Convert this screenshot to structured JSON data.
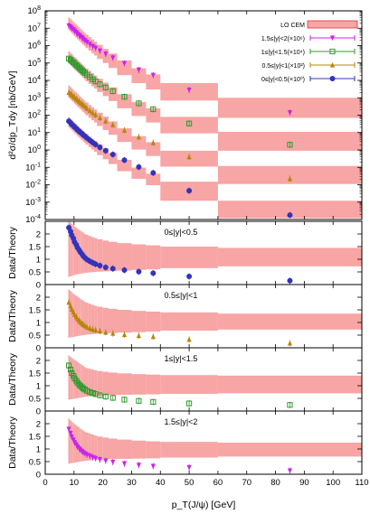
{
  "chart_data": {
    "type": "scatter",
    "xlabel": "p_T(J/ψ) [GeV]",
    "xlim": [
      0,
      110
    ],
    "x_ticks": [
      0,
      10,
      20,
      30,
      40,
      50,
      60,
      70,
      80,
      90,
      100,
      110
    ],
    "top_panel": {
      "ylabel": "d²σ/dp_Tdy [nb/GeV]",
      "yscale": "log",
      "ylim": [
        0.0001,
        100000000
      ],
      "y_ticks": [
        {
          "v": 0.0001,
          "exp": "-4"
        },
        {
          "v": 0.001,
          "exp": "-3"
        },
        {
          "v": 0.01,
          "exp": "-2"
        },
        {
          "v": 0.1,
          "exp": "-1"
        },
        {
          "v": 1,
          "exp": "0"
        },
        {
          "v": 10,
          "exp": "1"
        },
        {
          "v": 100,
          "exp": "2"
        },
        {
          "v": 1000,
          "exp": "3"
        },
        {
          "v": 10000,
          "exp": "4"
        },
        {
          "v": 100000,
          "exp": "5"
        },
        {
          "v": 1000000,
          "exp": "6"
        },
        {
          "v": 10000000,
          "exp": "7"
        },
        {
          "v": 100000000,
          "exp": "8"
        }
      ],
      "tick_base": "10",
      "legend_position": "top-right",
      "theory_label": "LO CEM",
      "theory_color": "#f7a5a5",
      "bin_edges": [
        8,
        8.5,
        9,
        9.5,
        10,
        10.5,
        11,
        11.5,
        12,
        12.5,
        13,
        13.5,
        14,
        15,
        16,
        17,
        18,
        20,
        22,
        25,
        30,
        35,
        40,
        60,
        110
      ],
      "series": [
        {
          "label": "1.5≤|y|<2(×10⁶)",
          "color": "#cc22ee",
          "marker": "triangle-down",
          "x": [
            8.2,
            8.8,
            9.2,
            9.8,
            10.2,
            10.8,
            11.2,
            11.8,
            12.2,
            12.8,
            13.2,
            13.8,
            14.5,
            15.5,
            16.5,
            17.5,
            19,
            21,
            23.5,
            27.5,
            32.5,
            37.5,
            50,
            85
          ],
          "y": [
            14000000,
            12000000,
            10000000,
            8500000,
            7000000,
            5800000,
            4800000,
            4000000,
            3400000,
            2900000,
            2400000,
            2000000,
            1600000,
            1200000,
            900000,
            720000,
            500000,
            330000,
            200000,
            95000,
            40000,
            20000,
            2800,
            140
          ],
          "theory_lo": [
            8000000,
            6500000,
            5300000,
            4300000,
            3500000,
            2850000,
            2350000,
            1950000,
            1620000,
            1350000,
            1120000,
            940000,
            720000,
            510000,
            370000,
            270000,
            170000,
            100000,
            52000,
            20000,
            7000,
            3000,
            700,
            70
          ],
          "theory_hi": [
            42000000,
            35000000,
            29000000,
            24000000,
            20000000,
            16500000,
            13700000,
            11400000,
            9500000,
            7900000,
            6600000,
            5500000,
            4300000,
            3100000,
            2300000,
            1700000,
            1100000,
            650000,
            350000,
            140000,
            50000,
            22000,
            7000,
            1000
          ]
        },
        {
          "label": "1≤|y|<1.5(×10⁴)",
          "color": "#2e9c2e",
          "marker": "square",
          "x": [
            8.2,
            8.8,
            9.2,
            9.8,
            10.2,
            10.8,
            11.2,
            11.8,
            12.2,
            12.8,
            13.2,
            13.8,
            14.5,
            15.5,
            16.5,
            17.5,
            19,
            21,
            23.5,
            27.5,
            32.5,
            37.5,
            50,
            85
          ],
          "y": [
            180000,
            155000,
            130000,
            110000,
            92000,
            77000,
            64000,
            54000,
            45000,
            38000,
            32000,
            27000,
            21000,
            15500,
            11500,
            8800,
            6000,
            3900,
            2400,
            1150,
            480,
            220,
            33,
            2
          ],
          "theory_lo": [
            95000,
            78000,
            64000,
            52000,
            43000,
            35000,
            29000,
            24000,
            20000,
            16600,
            13800,
            11500,
            8900,
            6300,
            4600,
            3400,
            2150,
            1250,
            650,
            250,
            90,
            38,
            9,
            0.9
          ],
          "theory_hi": [
            480000,
            400000,
            330000,
            270000,
            225000,
            186000,
            154000,
            128000,
            107000,
            89000,
            74000,
            62000,
            48000,
            35000,
            26000,
            19000,
            12500,
            7500,
            4000,
            1600,
            560,
            250,
            80,
            11
          ]
        },
        {
          "label": "0.5≤|y|<1(×10²)",
          "color": "#b8860b",
          "marker": "triangle-up",
          "x": [
            8.2,
            8.8,
            9.2,
            9.8,
            10.2,
            10.8,
            11.2,
            11.8,
            12.2,
            12.8,
            13.2,
            13.8,
            14.5,
            15.5,
            16.5,
            17.5,
            19,
            21,
            23.5,
            27.5,
            32.5,
            37.5,
            50,
            85
          ],
          "y": [
            2000,
            1720,
            1450,
            1230,
            1030,
            870,
            730,
            615,
            520,
            440,
            372,
            315,
            245,
            182,
            136,
            104,
            71,
            46,
            28,
            13.5,
            5.6,
            2.6,
            0.4,
            0.022
          ],
          "theory_lo": [
            1000,
            830,
            680,
            560,
            460,
            380,
            315,
            262,
            218,
            182,
            152,
            127,
            98,
            70,
            51,
            38,
            24,
            14,
            7.4,
            2.9,
            1.05,
            0.45,
            0.11,
            0.011
          ],
          "theory_hi": [
            5200,
            4300,
            3550,
            2950,
            2450,
            2030,
            1690,
            1400,
            1170,
            975,
            815,
            680,
            530,
            385,
            285,
            212,
            138,
            83,
            44,
            17.5,
            6.2,
            2.8,
            0.9,
            0.12
          ]
        },
        {
          "label": "0≤|y|<0.5(×10⁰)",
          "color": "#3333bb",
          "marker": "circle",
          "x": [
            8.2,
            8.8,
            9.2,
            9.8,
            10.2,
            10.8,
            11.2,
            11.8,
            12.2,
            12.8,
            13.2,
            13.8,
            14.5,
            15.5,
            16.5,
            17.5,
            19,
            21,
            23.5,
            27.5,
            32.5,
            37.5,
            50,
            85
          ],
          "y": [
            45,
            36,
            29.5,
            24.5,
            20.5,
            17,
            14.2,
            12,
            10.1,
            8.6,
            7.3,
            6.2,
            4.9,
            3.6,
            2.7,
            2.05,
            1.4,
            0.9,
            0.55,
            0.26,
            0.105,
            0.048,
            0.0045,
            0.00018
          ],
          "theory_lo": [
            20,
            16.5,
            13.6,
            11.2,
            9.3,
            7.7,
            6.4,
            5.3,
            4.45,
            3.72,
            3.11,
            2.61,
            2.02,
            1.45,
            1.06,
            0.79,
            0.5,
            0.29,
            0.155,
            0.06,
            0.022,
            0.0094,
            0.0012,
            0.00012
          ],
          "theory_hi": [
            80,
            66,
            54.5,
            45,
            37.3,
            31,
            25.8,
            21.5,
            17.9,
            15,
            12.5,
            10.5,
            8.15,
            5.9,
            4.35,
            3.25,
            2.1,
            1.27,
            0.68,
            0.27,
            0.096,
            0.043,
            0.015,
            0.0012
          ]
        }
      ]
    },
    "ratio_panels": [
      {
        "label": "0≤|y|<0.5",
        "ylabel": "Data/Theory",
        "color": "#3333bb",
        "marker": "circle",
        "ylim": [
          0,
          2.5
        ],
        "y_ticks": [
          0,
          0.5,
          1,
          1.5,
          2
        ],
        "x": [
          8.2,
          8.8,
          9.2,
          9.8,
          10.2,
          10.8,
          11.2,
          11.8,
          12.2,
          12.8,
          13.2,
          13.8,
          14.5,
          15.5,
          16.5,
          17.5,
          19,
          21,
          23.5,
          27.5,
          32.5,
          37.5,
          50,
          85
        ],
        "y": [
          2.25,
          2.1,
          1.95,
          1.82,
          1.68,
          1.57,
          1.46,
          1.36,
          1.28,
          1.2,
          1.13,
          1.06,
          0.99,
          0.92,
          0.86,
          0.81,
          0.75,
          0.68,
          0.63,
          0.57,
          0.51,
          0.45,
          0.32,
          0.15
        ],
        "band_lo": [
          0.3,
          0.32,
          0.34,
          0.36,
          0.38,
          0.4,
          0.41,
          0.42,
          0.43,
          0.44,
          0.45,
          0.46,
          0.47,
          0.48,
          0.49,
          0.5,
          0.51,
          0.52,
          0.53,
          0.55,
          0.58,
          0.6,
          0.65,
          0.72
        ],
        "band_hi": [
          2.5,
          2.45,
          2.4,
          2.35,
          2.3,
          2.25,
          2.21,
          2.17,
          2.13,
          2.09,
          2.05,
          2.01,
          1.97,
          1.92,
          1.88,
          1.84,
          1.79,
          1.74,
          1.69,
          1.64,
          1.59,
          1.55,
          1.5,
          1.45
        ]
      },
      {
        "label": "0.5≤|y|<1",
        "ylabel": "Data/Theory",
        "color": "#b8860b",
        "marker": "triangle-up",
        "ylim": [
          0,
          2.5
        ],
        "y_ticks": [
          0,
          0.5,
          1,
          1.5,
          2
        ],
        "x": [
          8.2,
          8.8,
          9.2,
          9.8,
          10.2,
          10.8,
          11.2,
          11.8,
          12.2,
          12.8,
          13.2,
          13.8,
          14.5,
          15.5,
          16.5,
          17.5,
          19,
          21,
          23.5,
          27.5,
          32.5,
          37.5,
          50,
          85
        ],
        "y": [
          1.8,
          1.65,
          1.52,
          1.41,
          1.31,
          1.22,
          1.14,
          1.07,
          1.01,
          0.96,
          0.91,
          0.87,
          0.82,
          0.77,
          0.73,
          0.7,
          0.66,
          0.61,
          0.57,
          0.52,
          0.48,
          0.44,
          0.33,
          0.18
        ],
        "band_lo": [
          0.4,
          0.41,
          0.42,
          0.43,
          0.44,
          0.45,
          0.46,
          0.47,
          0.48,
          0.49,
          0.5,
          0.51,
          0.52,
          0.53,
          0.54,
          0.55,
          0.56,
          0.57,
          0.58,
          0.6,
          0.62,
          0.64,
          0.68,
          0.72
        ],
        "band_hi": [
          2.3,
          2.25,
          2.2,
          2.15,
          2.1,
          2.06,
          2.02,
          1.98,
          1.94,
          1.9,
          1.86,
          1.82,
          1.78,
          1.74,
          1.7,
          1.66,
          1.62,
          1.58,
          1.54,
          1.5,
          1.46,
          1.43,
          1.4,
          1.35
        ]
      },
      {
        "label": "1≤|y|<1.5",
        "ylabel": "Data/Theory",
        "color": "#2e9c2e",
        "marker": "square",
        "ylim": [
          0,
          2.5
        ],
        "y_ticks": [
          0,
          0.5,
          1,
          1.5,
          2
        ],
        "x": [
          8.2,
          8.8,
          9.2,
          9.8,
          10.2,
          10.8,
          11.2,
          11.8,
          12.2,
          12.8,
          13.2,
          13.8,
          14.5,
          15.5,
          16.5,
          17.5,
          19,
          21,
          23.5,
          27.5,
          32.5,
          37.5,
          50,
          85
        ],
        "y": [
          1.8,
          1.64,
          1.5,
          1.39,
          1.29,
          1.2,
          1.12,
          1.05,
          0.99,
          0.94,
          0.89,
          0.85,
          0.8,
          0.75,
          0.71,
          0.67,
          0.62,
          0.57,
          0.52,
          0.45,
          0.4,
          0.36,
          0.3,
          0.24
        ],
        "band_lo": [
          0.45,
          0.46,
          0.47,
          0.48,
          0.49,
          0.5,
          0.51,
          0.52,
          0.53,
          0.54,
          0.55,
          0.56,
          0.57,
          0.58,
          0.59,
          0.6,
          0.61,
          0.62,
          0.63,
          0.64,
          0.65,
          0.66,
          0.68,
          0.7
        ],
        "band_hi": [
          2.2,
          2.15,
          2.1,
          2.06,
          2.02,
          1.98,
          1.94,
          1.9,
          1.86,
          1.82,
          1.78,
          1.74,
          1.7,
          1.67,
          1.64,
          1.61,
          1.58,
          1.55,
          1.52,
          1.49,
          1.46,
          1.44,
          1.42,
          1.4
        ]
      },
      {
        "label": "1.5≤|y|<2",
        "ylabel": "Data/Theory",
        "color": "#cc22ee",
        "marker": "triangle-down",
        "ylim": [
          0,
          2.5
        ],
        "y_ticks": [
          0,
          0.5,
          1,
          1.5,
          2
        ],
        "x": [
          8.2,
          8.8,
          9.2,
          9.8,
          10.2,
          10.8,
          11.2,
          11.8,
          12.2,
          12.8,
          13.2,
          13.8,
          14.5,
          15.5,
          16.5,
          17.5,
          19,
          21,
          23.5,
          27.5,
          32.5,
          37.5,
          50,
          85
        ],
        "y": [
          1.78,
          1.62,
          1.48,
          1.36,
          1.26,
          1.17,
          1.09,
          1.02,
          0.96,
          0.91,
          0.86,
          0.82,
          0.77,
          0.72,
          0.67,
          0.63,
          0.58,
          0.53,
          0.48,
          0.42,
          0.36,
          0.32,
          0.27,
          0.14
        ],
        "band_lo": [
          0.42,
          0.43,
          0.44,
          0.45,
          0.46,
          0.47,
          0.48,
          0.49,
          0.5,
          0.51,
          0.52,
          0.53,
          0.54,
          0.55,
          0.56,
          0.57,
          0.58,
          0.59,
          0.6,
          0.61,
          0.62,
          0.63,
          0.66,
          0.7
        ],
        "band_hi": [
          2.2,
          2.14,
          2.08,
          2.03,
          1.98,
          1.93,
          1.89,
          1.85,
          1.81,
          1.77,
          1.73,
          1.69,
          1.65,
          1.61,
          1.57,
          1.53,
          1.49,
          1.45,
          1.41,
          1.37,
          1.33,
          1.3,
          1.28,
          1.25
        ]
      }
    ]
  }
}
